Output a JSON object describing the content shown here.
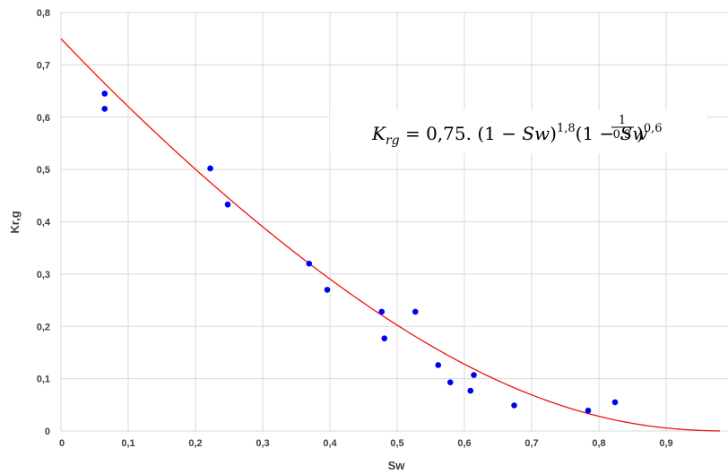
{
  "chart_data": {
    "type": "scatter",
    "xlabel": "Sw",
    "ylabel": "Kr,g",
    "xlim": [
      0,
      1.0
    ],
    "ylim": [
      0,
      0.8
    ],
    "x_ticks": [
      "0",
      "0,1",
      "0,2",
      "0,3",
      "0,4",
      "0,5",
      "0,6",
      "0,7",
      "0,8",
      "0,9"
    ],
    "y_ticks": [
      "0",
      "0,1",
      "0,2",
      "0,3",
      "0,4",
      "0,5",
      "0,6",
      "0,7",
      "0,8"
    ],
    "grid": true,
    "series": [
      {
        "type": "scatter",
        "color": "#0000ee",
        "points": [
          [
            0.065,
            0.645
          ],
          [
            0.065,
            0.616
          ],
          [
            0.222,
            0.502
          ],
          [
            0.248,
            0.433
          ],
          [
            0.369,
            0.32
          ],
          [
            0.396,
            0.27
          ],
          [
            0.477,
            0.228
          ],
          [
            0.481,
            0.177
          ],
          [
            0.527,
            0.228
          ],
          [
            0.561,
            0.126
          ],
          [
            0.579,
            0.093
          ],
          [
            0.609,
            0.077
          ],
          [
            0.614,
            0.107
          ],
          [
            0.674,
            0.049
          ],
          [
            0.784,
            0.039
          ],
          [
            0.824,
            0.055
          ]
        ]
      },
      {
        "type": "line",
        "color": "#ee1111",
        "function": "0.75*(1-Sw)^1.8*(1-Sw^(1/0.3))^0.6",
        "x_range": [
          0,
          0.98
        ]
      }
    ],
    "annotation": {
      "lhs": "K",
      "lhs_sub": "rg",
      "eq": " = 0,75. (1 − ",
      "var": "Sw",
      "close1": ")",
      "exp1": "1,8",
      "open2": "(1 − ",
      "var2": "Sw",
      "frac_num": "1",
      "frac_den": "0,3",
      "close2": ")",
      "exp2": "0,6"
    }
  }
}
